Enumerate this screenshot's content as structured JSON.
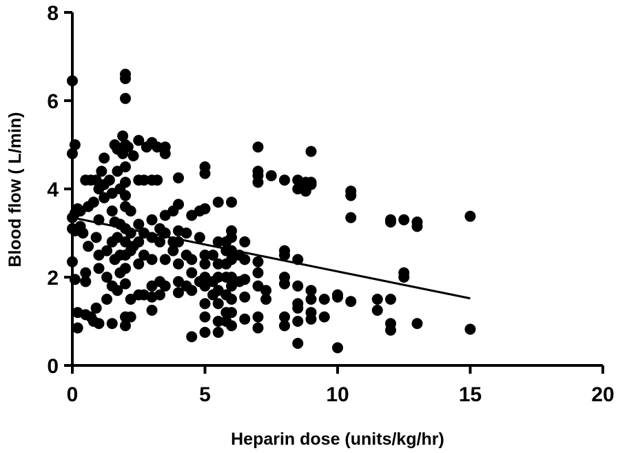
{
  "chart_data": {
    "type": "scatter",
    "title": "",
    "xlabel": "Heparin dose (units/kg/hr)",
    "ylabel": "Blood flow ( L/min)",
    "xlim": [
      0,
      20
    ],
    "ylim": [
      0,
      8
    ],
    "xticks": [
      0,
      5,
      10,
      15,
      20
    ],
    "yticks": [
      0,
      2,
      4,
      6,
      8
    ],
    "xtick_labels": [
      "0",
      "5",
      "10",
      "15",
      "20"
    ],
    "ytick_labels": [
      "0",
      "2",
      "4",
      "6",
      "8"
    ],
    "grid": false,
    "legend": "none",
    "marker_color": "#000000",
    "trendline": {
      "x": [
        0,
        15
      ],
      "y": [
        3.35,
        1.52
      ]
    },
    "points": [
      [
        0,
        6.45
      ],
      [
        0,
        4.8
      ],
      [
        0.1,
        5.0
      ],
      [
        0,
        3.35
      ],
      [
        0.1,
        3.45
      ],
      [
        0.2,
        3.55
      ],
      [
        0,
        3.1
      ],
      [
        0.1,
        3.05
      ],
      [
        0,
        2.35
      ],
      [
        0.1,
        1.95
      ],
      [
        0.2,
        1.2
      ],
      [
        0.2,
        0.85
      ],
      [
        0.3,
        3.5
      ],
      [
        0.3,
        3.15
      ],
      [
        0.4,
        3.0
      ],
      [
        0.5,
        4.2
      ],
      [
        0.6,
        3.6
      ],
      [
        0.5,
        2.1
      ],
      [
        0.6,
        2.7
      ],
      [
        0.5,
        1.9
      ],
      [
        0.5,
        1.15
      ],
      [
        0.7,
        1.1
      ],
      [
        0.8,
        1.0
      ],
      [
        0.8,
        3.7
      ],
      [
        0.7,
        4.2
      ],
      [
        0.9,
        4.2
      ],
      [
        1.0,
        4.0
      ],
      [
        1.0,
        3.3
      ],
      [
        0.9,
        2.9
      ],
      [
        1.0,
        2.5
      ],
      [
        1.0,
        2.2
      ],
      [
        0.9,
        1.3
      ],
      [
        1.0,
        0.95
      ],
      [
        1.1,
        4.4
      ],
      [
        1.2,
        4.7
      ],
      [
        1.2,
        4.1
      ],
      [
        1.2,
        3.8
      ],
      [
        1.3,
        2.6
      ],
      [
        1.3,
        2.0
      ],
      [
        1.3,
        1.5
      ],
      [
        1.4,
        4.2
      ],
      [
        1.5,
        3.9
      ],
      [
        1.5,
        3.5
      ],
      [
        1.6,
        3.25
      ],
      [
        1.5,
        2.8
      ],
      [
        1.6,
        2.4
      ],
      [
        1.5,
        1.8
      ],
      [
        1.5,
        0.95
      ],
      [
        1.6,
        5.0
      ],
      [
        1.7,
        4.9
      ],
      [
        1.7,
        4.4
      ],
      [
        1.8,
        4.0
      ],
      [
        1.8,
        3.2
      ],
      [
        1.7,
        2.9
      ],
      [
        1.8,
        2.5
      ],
      [
        1.8,
        2.1
      ],
      [
        1.7,
        1.7
      ],
      [
        1.9,
        5.2
      ],
      [
        1.9,
        4.8
      ],
      [
        2.0,
        6.6
      ],
      [
        2.0,
        6.5
      ],
      [
        2.0,
        6.05
      ],
      [
        2.0,
        5.0
      ],
      [
        2.0,
        4.5
      ],
      [
        2.0,
        4.15
      ],
      [
        2.0,
        3.85
      ],
      [
        2.0,
        3.6
      ],
      [
        2.0,
        3.1
      ],
      [
        2.0,
        2.8
      ],
      [
        2.0,
        2.5
      ],
      [
        2.0,
        2.2
      ],
      [
        2.0,
        1.85
      ],
      [
        2.0,
        1.1
      ],
      [
        2.0,
        0.9
      ],
      [
        2.1,
        4.95
      ],
      [
        2.2,
        3.5
      ],
      [
        2.2,
        3.0
      ],
      [
        2.2,
        2.6
      ],
      [
        2.2,
        1.5
      ],
      [
        2.2,
        1.1
      ],
      [
        2.3,
        4.75
      ],
      [
        2.3,
        2.7
      ],
      [
        2.5,
        5.1
      ],
      [
        2.5,
        4.2
      ],
      [
        2.5,
        3.2
      ],
      [
        2.5,
        2.8
      ],
      [
        2.5,
        2.3
      ],
      [
        2.5,
        1.6
      ],
      [
        2.7,
        4.2
      ],
      [
        2.7,
        3.0
      ],
      [
        2.7,
        2.5
      ],
      [
        2.7,
        1.6
      ],
      [
        2.8,
        4.95
      ],
      [
        3.0,
        5.05
      ],
      [
        3.0,
        4.2
      ],
      [
        3.0,
        3.3
      ],
      [
        3.0,
        2.9
      ],
      [
        3.0,
        2.4
      ],
      [
        3.0,
        1.8
      ],
      [
        3.0,
        1.55
      ],
      [
        3.0,
        1.25
      ],
      [
        3.2,
        4.95
      ],
      [
        3.2,
        4.2
      ],
      [
        3.3,
        3.1
      ],
      [
        3.3,
        2.8
      ],
      [
        3.3,
        1.9
      ],
      [
        3.3,
        1.6
      ],
      [
        3.5,
        4.95
      ],
      [
        3.5,
        4.8
      ],
      [
        3.5,
        3.4
      ],
      [
        3.5,
        3.0
      ],
      [
        3.5,
        2.4
      ],
      [
        3.5,
        1.8
      ],
      [
        3.8,
        3.5
      ],
      [
        3.8,
        2.8
      ],
      [
        3.8,
        2.6
      ],
      [
        4.0,
        4.25
      ],
      [
        4.0,
        3.65
      ],
      [
        4.0,
        3.05
      ],
      [
        4.0,
        2.8
      ],
      [
        4.0,
        2.3
      ],
      [
        4.0,
        1.9
      ],
      [
        4.0,
        1.65
      ],
      [
        4.3,
        3.0
      ],
      [
        4.3,
        2.5
      ],
      [
        4.3,
        1.8
      ],
      [
        4.5,
        3.4
      ],
      [
        4.5,
        2.4
      ],
      [
        4.5,
        2.1
      ],
      [
        4.5,
        1.7
      ],
      [
        4.5,
        0.65
      ],
      [
        4.8,
        3.5
      ],
      [
        4.8,
        2.9
      ],
      [
        4.8,
        1.9
      ],
      [
        5.0,
        4.5
      ],
      [
        5.0,
        4.35
      ],
      [
        5.0,
        3.55
      ],
      [
        5.0,
        2.5
      ],
      [
        5.0,
        2.3
      ],
      [
        5.0,
        2.0
      ],
      [
        5.0,
        1.8
      ],
      [
        5.0,
        1.4
      ],
      [
        5.0,
        1.1
      ],
      [
        5.0,
        0.75
      ],
      [
        5.3,
        2.5
      ],
      [
        5.3,
        1.9
      ],
      [
        5.3,
        1.6
      ],
      [
        5.5,
        3.7
      ],
      [
        5.5,
        2.8
      ],
      [
        5.5,
        2.3
      ],
      [
        5.5,
        2.0
      ],
      [
        5.5,
        1.7
      ],
      [
        5.5,
        1.4
      ],
      [
        5.5,
        1.0
      ],
      [
        5.5,
        0.75
      ],
      [
        5.8,
        2.8
      ],
      [
        5.8,
        2.6
      ],
      [
        5.8,
        2.3
      ],
      [
        5.8,
        2.0
      ],
      [
        5.8,
        1.6
      ],
      [
        5.8,
        1.2
      ],
      [
        5.8,
        1.0
      ],
      [
        6.0,
        3.7
      ],
      [
        6.0,
        3.05
      ],
      [
        6.0,
        2.9
      ],
      [
        6.0,
        2.6
      ],
      [
        6.0,
        2.4
      ],
      [
        6.0,
        2.0
      ],
      [
        6.0,
        1.8
      ],
      [
        6.0,
        1.5
      ],
      [
        6.0,
        1.2
      ],
      [
        6.0,
        0.9
      ],
      [
        6.3,
        2.5
      ],
      [
        6.3,
        1.9
      ],
      [
        6.5,
        2.8
      ],
      [
        6.5,
        2.4
      ],
      [
        6.5,
        1.95
      ],
      [
        6.5,
        1.55
      ],
      [
        6.5,
        1.05
      ],
      [
        7.0,
        4.95
      ],
      [
        7.0,
        4.4
      ],
      [
        7.0,
        4.3
      ],
      [
        7.0,
        4.15
      ],
      [
        7.0,
        2.35
      ],
      [
        7.0,
        2.1
      ],
      [
        7.0,
        1.8
      ],
      [
        7.0,
        1.1
      ],
      [
        7.0,
        0.85
      ],
      [
        7.3,
        1.7
      ],
      [
        7.3,
        1.5
      ],
      [
        7.5,
        4.3
      ],
      [
        8.0,
        4.2
      ],
      [
        8.0,
        2.6
      ],
      [
        8.0,
        2.5
      ],
      [
        8.0,
        2.0
      ],
      [
        8.0,
        1.85
      ],
      [
        8.0,
        1.1
      ],
      [
        8.0,
        0.9
      ],
      [
        8.5,
        4.2
      ],
      [
        8.5,
        4.0
      ],
      [
        8.5,
        2.4
      ],
      [
        8.5,
        1.8
      ],
      [
        8.5,
        1.4
      ],
      [
        8.5,
        1.3
      ],
      [
        8.5,
        1.0
      ],
      [
        8.5,
        0.5
      ],
      [
        8.8,
        4.15
      ],
      [
        8.8,
        3.95
      ],
      [
        9.0,
        4.85
      ],
      [
        9.0,
        4.15
      ],
      [
        9.0,
        4.1
      ],
      [
        9.0,
        1.7
      ],
      [
        9.0,
        1.5
      ],
      [
        9.0,
        1.2
      ],
      [
        9.0,
        1.05
      ],
      [
        9.5,
        1.5
      ],
      [
        9.5,
        1.1
      ],
      [
        10.0,
        1.6
      ],
      [
        10.0,
        1.55
      ],
      [
        10.0,
        0.4
      ],
      [
        10.5,
        3.95
      ],
      [
        10.5,
        3.85
      ],
      [
        10.5,
        3.35
      ],
      [
        10.5,
        1.45
      ],
      [
        11.5,
        1.5
      ],
      [
        11.5,
        1.25
      ],
      [
        12.0,
        3.3
      ],
      [
        12.0,
        3.25
      ],
      [
        12.0,
        1.5
      ],
      [
        12.0,
        0.95
      ],
      [
        12.0,
        0.8
      ],
      [
        12.5,
        3.3
      ],
      [
        12.5,
        2.1
      ],
      [
        12.5,
        2.0
      ],
      [
        13.0,
        3.25
      ],
      [
        13.0,
        3.15
      ],
      [
        13.0,
        0.95
      ],
      [
        15.0,
        3.38
      ],
      [
        15.0,
        0.82
      ]
    ]
  }
}
